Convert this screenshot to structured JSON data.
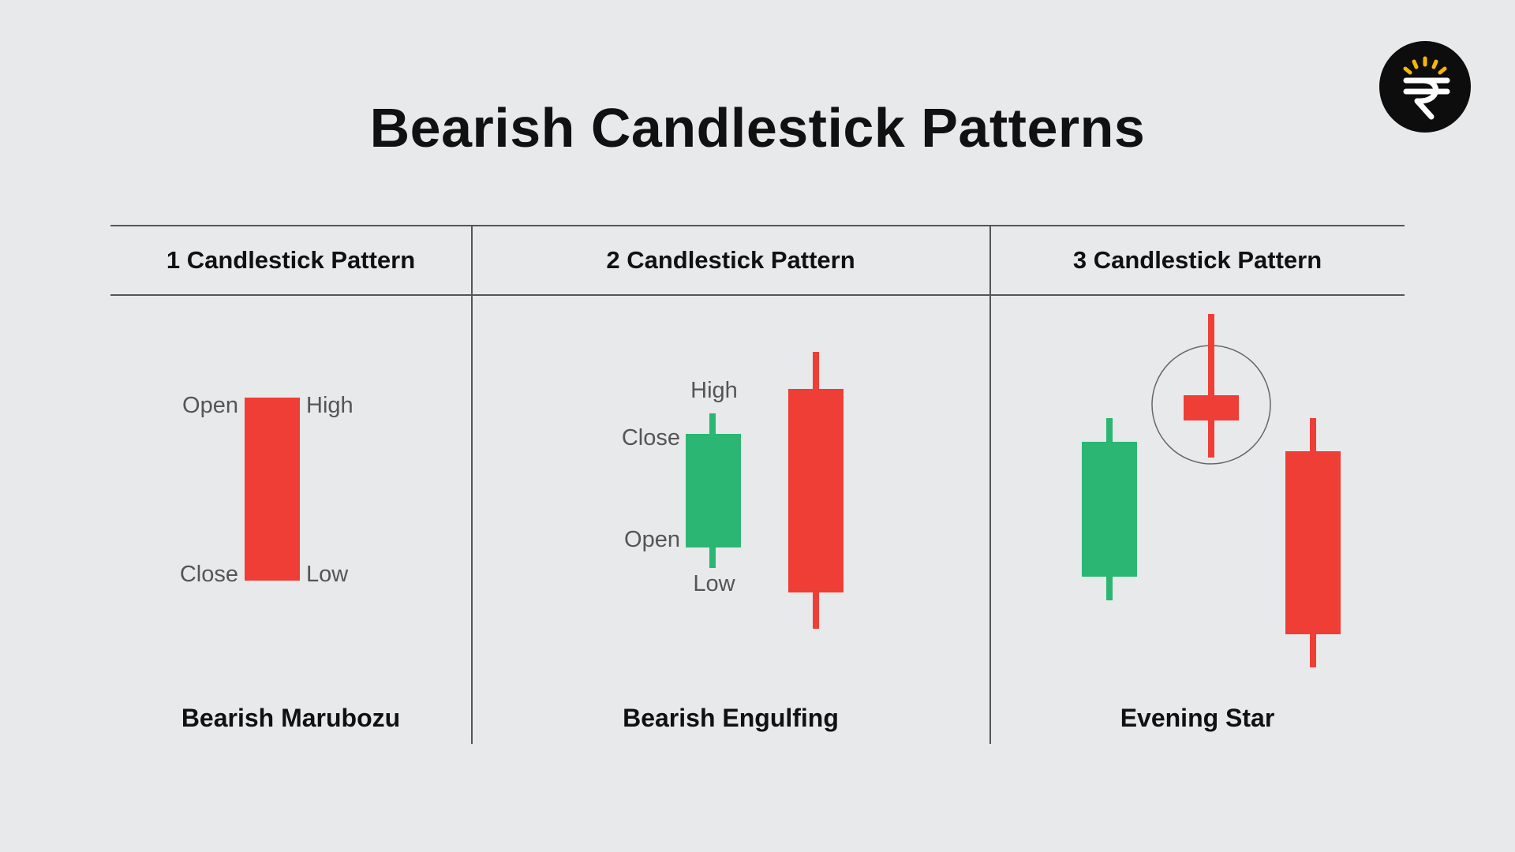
{
  "title": "Bearish Candlestick Patterns",
  "colors": {
    "bearish": "#ee3e36",
    "bullish": "#2bb673",
    "background": "#e8e9eb",
    "text": "#111111",
    "label": "#555555"
  },
  "logo": {
    "icon": "rupee-sun-logo-icon"
  },
  "columns": [
    {
      "header": "1 Candlestick Pattern",
      "pattern_name": "Bearish Marubozu",
      "labels": {
        "open": "Open",
        "high": "High",
        "close": "Close",
        "low": "Low"
      }
    },
    {
      "header": "2 Candlestick Pattern",
      "pattern_name": "Bearish Engulfing",
      "labels": {
        "high": "High",
        "close": "Close",
        "open": "Open",
        "low": "Low"
      }
    },
    {
      "header": "3 Candlestick Pattern",
      "pattern_name": "Evening Star",
      "highlight": "star-circle"
    }
  ]
}
